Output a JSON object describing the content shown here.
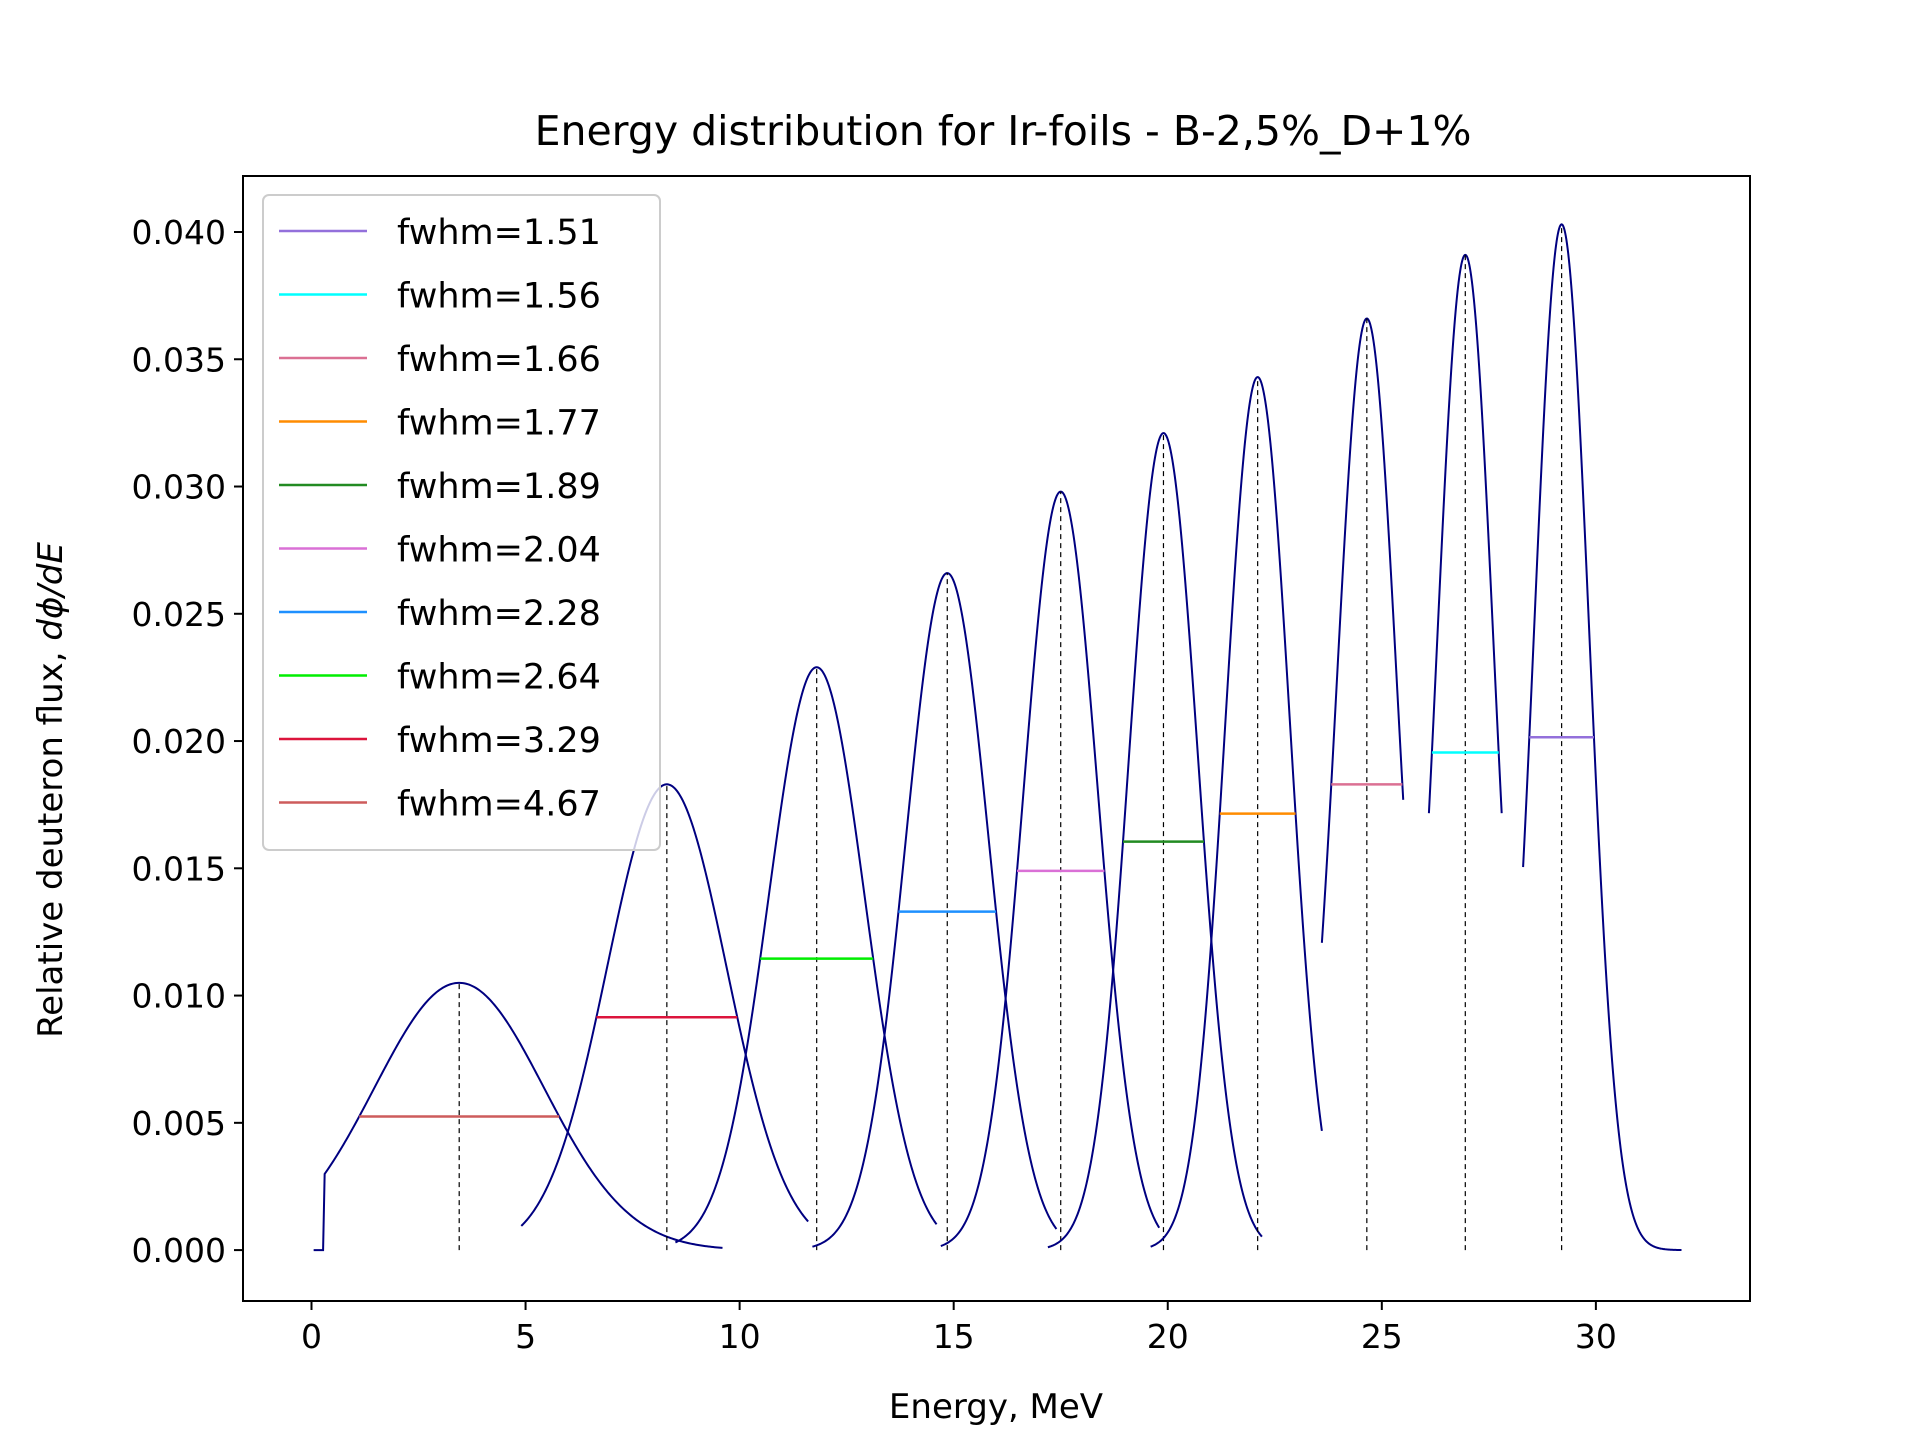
{
  "chart_data": {
    "type": "line",
    "title": "Energy distribution for Ir-foils - B-2,5%_D+1%",
    "xlabel": "Energy, MeV",
    "ylabel_main": "Relative deuteron flux, ",
    "ylabel_math": "dϕ/dE",
    "xlim": [
      -1.6,
      33.6
    ],
    "ylim": [
      -0.002,
      0.0422
    ],
    "xticks": [
      "0",
      "5",
      "10",
      "15",
      "20",
      "25",
      "30"
    ],
    "yticks": [
      "0.000",
      "0.005",
      "0.010",
      "0.015",
      "0.020",
      "0.025",
      "0.030",
      "0.035",
      "0.040"
    ],
    "grid": false,
    "legend_position": "upper-left",
    "curve_color": "#000080",
    "series": [
      {
        "peak_energy": 3.45,
        "peak_flux": 0.0105,
        "fwhm": 4.67,
        "half_max": 0.00525,
        "x_start": 0.05,
        "x_end": 9.6,
        "legend": "fwhm=4.67",
        "color": "#cd5c5c"
      },
      {
        "peak_energy": 8.3,
        "peak_flux": 0.0183,
        "fwhm": 3.29,
        "half_max": 0.00915,
        "x_start": 4.9,
        "x_end": 11.6,
        "legend": "fwhm=3.29",
        "color": "#dc143c"
      },
      {
        "peak_energy": 11.8,
        "peak_flux": 0.0229,
        "fwhm": 2.64,
        "half_max": 0.01145,
        "x_start": 8.5,
        "x_end": 14.6,
        "legend": "fwhm=2.64",
        "color": "#00ee00"
      },
      {
        "peak_energy": 14.85,
        "peak_flux": 0.0266,
        "fwhm": 2.28,
        "half_max": 0.0133,
        "x_start": 11.7,
        "x_end": 17.4,
        "legend": "fwhm=2.28",
        "color": "#1e90ff"
      },
      {
        "peak_energy": 17.5,
        "peak_flux": 0.0298,
        "fwhm": 2.04,
        "half_max": 0.0149,
        "x_start": 14.7,
        "x_end": 19.8,
        "legend": "fwhm=2.04",
        "color": "#da70d6"
      },
      {
        "peak_energy": 19.9,
        "peak_flux": 0.0321,
        "fwhm": 1.89,
        "half_max": 0.01605,
        "x_start": 17.2,
        "x_end": 22.2,
        "legend": "fwhm=1.89",
        "color": "#228b22"
      },
      {
        "peak_energy": 22.1,
        "peak_flux": 0.0343,
        "fwhm": 1.77,
        "half_max": 0.01715,
        "x_start": 19.6,
        "x_end": 23.6,
        "legend": "fwhm=1.77",
        "color": "#ff8c00"
      },
      {
        "peak_energy": 24.65,
        "peak_flux": 0.0366,
        "fwhm": 1.66,
        "half_max": 0.0183,
        "x_start": 23.6,
        "x_end": 25.5,
        "legend": "fwhm=1.66",
        "color": "#db7093"
      },
      {
        "peak_energy": 26.95,
        "peak_flux": 0.0391,
        "fwhm": 1.56,
        "half_max": 0.01955,
        "x_start": 26.1,
        "x_end": 27.8,
        "legend": "fwhm=1.56",
        "color": "#00ffff"
      },
      {
        "peak_energy": 29.2,
        "peak_flux": 0.0403,
        "fwhm": 1.51,
        "half_max": 0.02015,
        "x_start": 28.3,
        "x_end": 32.0,
        "legend": "fwhm=1.51",
        "color": "#9370db"
      }
    ],
    "legend_order": [
      9,
      8,
      7,
      6,
      5,
      4,
      3,
      2,
      1,
      0
    ]
  }
}
